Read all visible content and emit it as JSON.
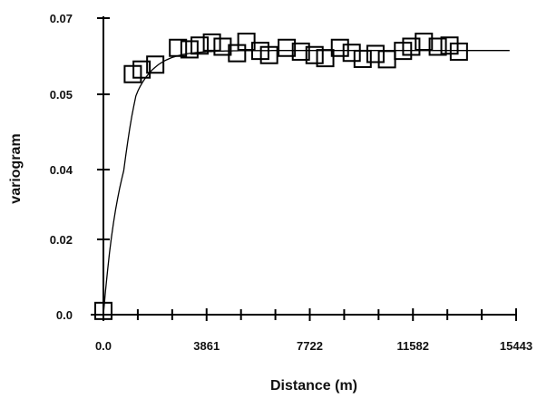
{
  "chart_data": {
    "type": "scatter",
    "title": "",
    "xlabel": "Distance (m)",
    "ylabel": "variogram",
    "xlim": [
      0,
      15443
    ],
    "ylim": [
      0,
      0.07
    ],
    "x_ticks": [
      0,
      3861,
      7722,
      11582,
      15443
    ],
    "x_tick_labels": [
      "0.0",
      "3861",
      "7722",
      "11582",
      "15443"
    ],
    "y_ticks": [
      0,
      0.02,
      0.04,
      0.05,
      0.07
    ],
    "y_tick_labels": [
      "0.0",
      "0.02",
      "0.04",
      "0.05",
      "0.07"
    ],
    "grid": false,
    "legend": "none",
    "series": [
      {
        "kind": "points",
        "marker": "open-square",
        "x": [
          0,
          1100,
          1430,
          1940,
          2790,
          3220,
          3600,
          4060,
          4460,
          5000,
          5350,
          5870,
          6200,
          6860,
          7390,
          7900,
          8300,
          8850,
          9290,
          9700,
          10180,
          10610,
          11210,
          11520,
          11990,
          12510,
          12950,
          13300
        ],
        "y": [
          0.001,
          0.0553,
          0.0565,
          0.0578,
          0.0622,
          0.0618,
          0.0628,
          0.0636,
          0.0625,
          0.0608,
          0.0638,
          0.0614,
          0.0603,
          0.0622,
          0.0612,
          0.0603,
          0.0595,
          0.0622,
          0.0609,
          0.0593,
          0.0606,
          0.0592,
          0.0614,
          0.0625,
          0.0638,
          0.0625,
          0.0628,
          0.0612
        ]
      },
      {
        "kind": "model-curve",
        "model": "exponential",
        "nugget": 0.0,
        "sill": 0.0615,
        "range": 2200,
        "x_start": 0,
        "x_end": 15200
      }
    ]
  }
}
